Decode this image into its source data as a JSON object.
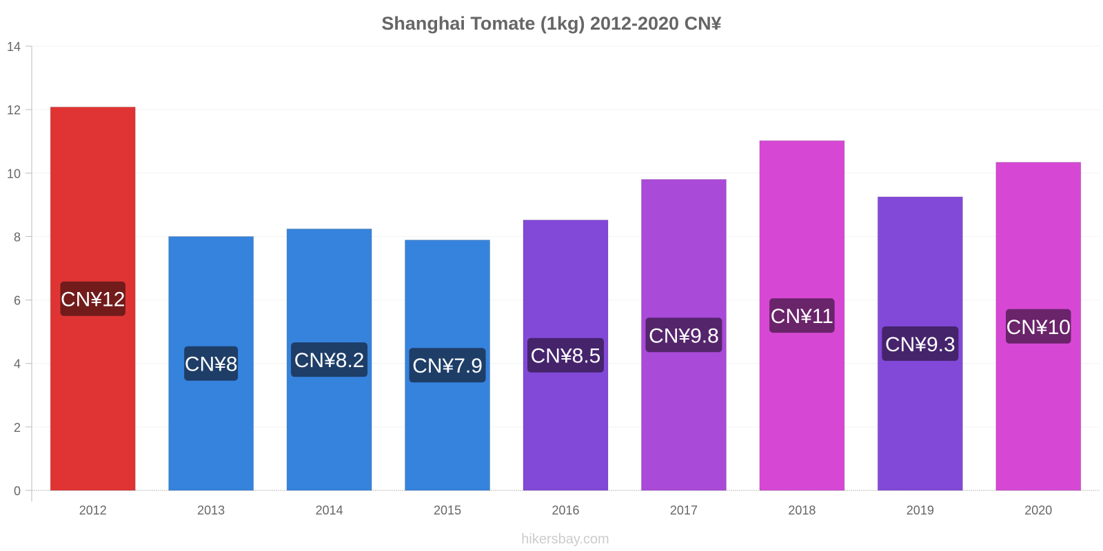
{
  "chart_data": {
    "type": "bar",
    "title": "Shanghai Tomate (1kg) 2012-2020 CN¥",
    "categories": [
      "2012",
      "2013",
      "2014",
      "2015",
      "2016",
      "2017",
      "2018",
      "2019",
      "2020"
    ],
    "values": [
      12.08,
      8.0,
      8.24,
      7.89,
      8.52,
      9.8,
      11.02,
      9.25,
      10.34
    ],
    "value_labels": [
      "CN¥12",
      "CN¥8",
      "CN¥8.2",
      "CN¥7.9",
      "CN¥8.5",
      "CN¥9.8",
      "CN¥11",
      "CN¥9.3",
      "CN¥10"
    ],
    "bar_colors": [
      "#e03434",
      "#3683dd",
      "#3683dd",
      "#3683dd",
      "#8249d8",
      "#aa4ad8",
      "#d648d4",
      "#8249d8",
      "#d648d4"
    ],
    "label_bg_colors": [
      "#711b1b",
      "#1e3e68",
      "#1e3e68",
      "#1e3e68",
      "#45246c",
      "#55256c",
      "#6a246a",
      "#45246c",
      "#6a246a"
    ],
    "yticks": [
      0,
      2,
      4,
      6,
      8,
      10,
      12,
      14
    ],
    "ylim": [
      0,
      14
    ],
    "xlabel": "",
    "ylabel": "",
    "grid": true
  },
  "footer": {
    "source": "hikersbay.com"
  }
}
